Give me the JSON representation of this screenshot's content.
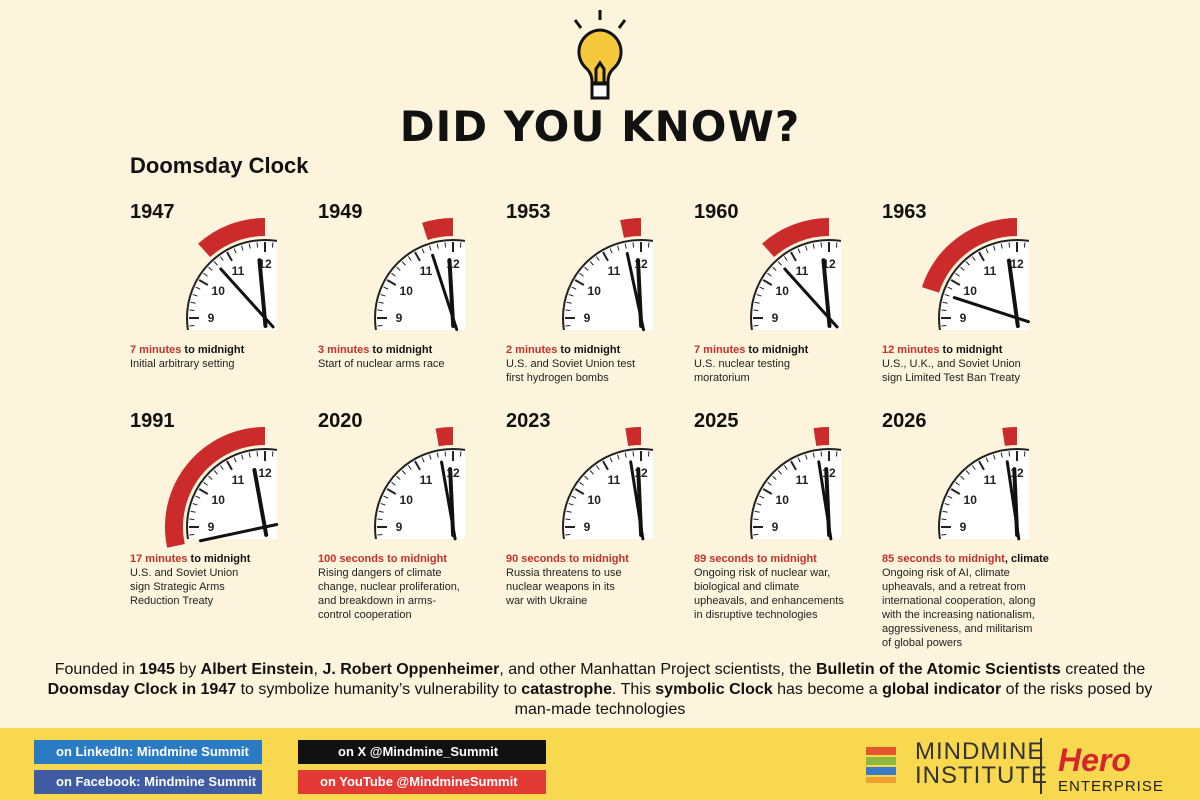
{
  "header": {
    "title": "DID YOU KNOW?",
    "subtitle": "Doomsday Clock"
  },
  "clocks": [
    {
      "year": "1947",
      "lead": "7 minutes",
      "tail": " to midnight",
      "lines": [
        "Initial arbitrary setting"
      ]
    },
    {
      "year": "1949",
      "lead": "3 minutes",
      "tail": " to midnight",
      "lines": [
        "Start of nuclear arms race"
      ]
    },
    {
      "year": "1953",
      "lead": "2 minutes",
      "tail": " to midnight",
      "lines": [
        "U.S. and Soviet Union test",
        "first hydrogen bombs"
      ]
    },
    {
      "year": "1960",
      "lead": "7 minutes",
      "tail": " to midnight",
      "lines": [
        "U.S. nuclear testing",
        "moratorium"
      ]
    },
    {
      "year": "1963",
      "lead": "12 minutes",
      "tail": " to midnight",
      "lines": [
        "U.S., U.K., and Soviet Union",
        "sign Limited Test Ban Treaty"
      ]
    },
    {
      "year": "1991",
      "lead": "17 minutes",
      "tail": " to midnight",
      "lines": [
        "U.S. and Soviet Union",
        "sign Strategic Arms",
        "Reduction Treaty"
      ]
    },
    {
      "year": "2020",
      "lead": "100 seconds to midnight",
      "tail": "",
      "lines": [
        "Rising dangers of climate",
        "change, nuclear proliferation,",
        "and breakdown in arms-",
        "control cooperation"
      ]
    },
    {
      "year": "2023",
      "lead": "90 seconds to midnight",
      "tail": "",
      "lines": [
        "Russia threatens to use",
        "nuclear weapons in its",
        "war with Ukraine"
      ]
    },
    {
      "year": "2025",
      "lead": "89 seconds to midnight",
      "tail": "",
      "lines": [
        "Ongoing risk of nuclear war,",
        "biological and climate",
        "upheavals, and enhancements",
        "in disruptive technologies"
      ]
    },
    {
      "year": "2026",
      "lead": "85 seconds to midnight",
      "tail": ", climate",
      "lines": [
        "Ongoing risk of AI, climate",
        "upheavals, and a retreat from",
        "international cooperation, along",
        "with the increasing nationalism,",
        "aggressiveness, and militarism",
        "of global powers"
      ]
    }
  ],
  "dial": [
    "9",
    "10",
    "11",
    "12"
  ],
  "footer": {
    "parts": [
      {
        "text": "Founded in ",
        "bold": false
      },
      {
        "text": "1945",
        "bold": true
      },
      {
        "text": " by ",
        "bold": false
      },
      {
        "text": "Albert Einstein",
        "bold": true
      },
      {
        "text": ", ",
        "bold": false
      },
      {
        "text": "J. Robert Oppenheimer",
        "bold": true
      },
      {
        "text": ", and other Manhattan Project scientists, the ",
        "bold": false
      },
      {
        "text": "Bulletin of the Atomic Scientists",
        "bold": true
      },
      {
        "text": " created the ",
        "bold": false
      },
      {
        "text": "Doomsday Clock in 1947",
        "bold": true
      },
      {
        "text": " to symbolize humanity’s vulnerability to ",
        "bold": false
      },
      {
        "text": "catastrophe",
        "bold": true
      },
      {
        "text": ". This ",
        "bold": false
      },
      {
        "text": "symbolic Clock",
        "bold": true
      },
      {
        "text": " has become a ",
        "bold": false
      },
      {
        "text": "global indicator",
        "bold": true
      },
      {
        "text": " of the risks posed by man-made technologies",
        "bold": false
      }
    ]
  },
  "links": [
    "on LinkedIn: Mindmine Summit",
    "on Facebook: Mindmine Summit",
    "on X @Mindmine_Summit",
    "on YouTube @MindmineSummit"
  ],
  "brand": {
    "l1": "MINDMINE",
    "l2": "INSTITUTE",
    "h1": "Hero",
    "h2": "ENTERPRISE"
  }
}
